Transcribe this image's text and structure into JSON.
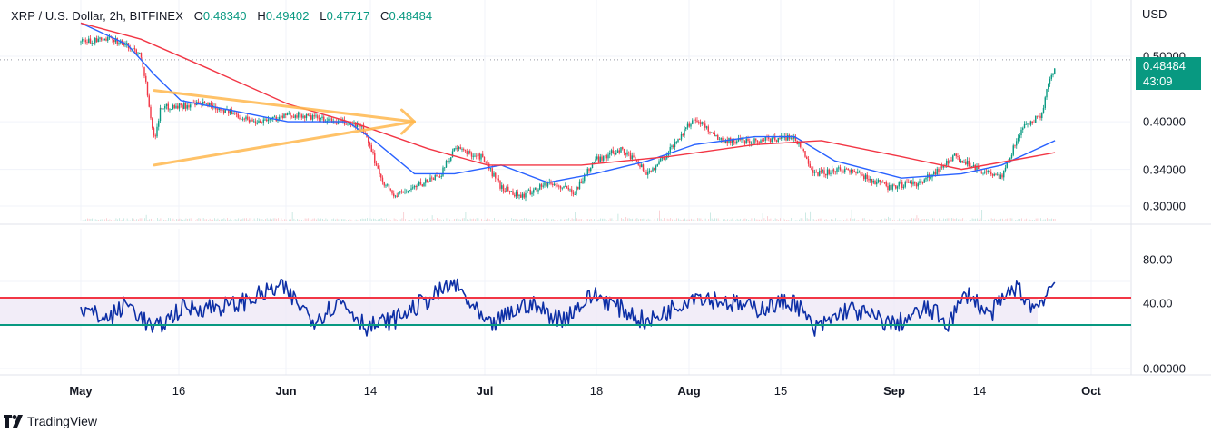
{
  "header": {
    "symbol": "XRP / U.S. Dollar, 2h, BITFINEX",
    "open_label": "O",
    "open": "0.48340",
    "high_label": "H",
    "high": "0.49402",
    "low_label": "L",
    "low": "0.47717",
    "close_label": "C",
    "close": "0.48484"
  },
  "price_axis": {
    "unit": "USD",
    "labels": [
      {
        "text": "0.50000",
        "value": 0.5
      },
      {
        "text": "0.40000",
        "value": 0.4
      },
      {
        "text": "0.34000",
        "value": 0.34
      },
      {
        "text": "0.30000",
        "value": 0.3
      }
    ]
  },
  "last_price": {
    "value": "0.48484",
    "countdown": "43:09",
    "color": "#089981"
  },
  "rsi_axis": {
    "labels": [
      {
        "text": "80.00",
        "value": 80
      },
      {
        "text": "40.00",
        "value": 40
      },
      {
        "text": "0.00000",
        "value": 0
      }
    ]
  },
  "time_axis": [
    {
      "text": "May",
      "bold": true
    },
    {
      "text": "16",
      "bold": false
    },
    {
      "text": "Jun",
      "bold": true
    },
    {
      "text": "14",
      "bold": false
    },
    {
      "text": "Jul",
      "bold": true
    },
    {
      "text": "18",
      "bold": false
    },
    {
      "text": "Aug",
      "bold": true
    },
    {
      "text": "15",
      "bold": false
    },
    {
      "text": "Sep",
      "bold": true
    },
    {
      "text": "14",
      "bold": false
    },
    {
      "text": "Oct",
      "bold": true
    }
  ],
  "brand": {
    "name": "TradingView",
    "icon": "tradingview-logo-icon"
  },
  "colors": {
    "up": "#089981",
    "down": "#f23645",
    "ma_fast": "#2962ff",
    "ma_slow": "#f23645",
    "triangle": "#ffb74d",
    "rsi_line": "#0d2fa6",
    "rsi_upper": "#f23645",
    "rsi_lower": "#089981",
    "rsi_band": "#ede7f6"
  },
  "chart_data": [
    {
      "type": "candlestick",
      "title": "XRP / U.S. Dollar, 2h, BITFINEX",
      "ylim": [
        0.285,
        0.57
      ],
      "y_scale": "log",
      "grid": true,
      "price_path": [
        {
          "x": "2024-05-01",
          "y": 0.525
        },
        {
          "x": "2024-05-06",
          "y": 0.53
        },
        {
          "x": "2024-05-10",
          "y": 0.505
        },
        {
          "x": "2024-05-11",
          "y": 0.44
        },
        {
          "x": "2024-05-12",
          "y": 0.375
        },
        {
          "x": "2024-05-13",
          "y": 0.42
        },
        {
          "x": "2024-05-20",
          "y": 0.425
        },
        {
          "x": "2024-05-27",
          "y": 0.4
        },
        {
          "x": "2024-06-02",
          "y": 0.41
        },
        {
          "x": "2024-06-08",
          "y": 0.4
        },
        {
          "x": "2024-06-12",
          "y": 0.395
        },
        {
          "x": "2024-06-15",
          "y": 0.33
        },
        {
          "x": "2024-06-17",
          "y": 0.31
        },
        {
          "x": "2024-06-20",
          "y": 0.32
        },
        {
          "x": "2024-06-24",
          "y": 0.335
        },
        {
          "x": "2024-06-26",
          "y": 0.365
        },
        {
          "x": "2024-06-30",
          "y": 0.355
        },
        {
          "x": "2024-07-03",
          "y": 0.32
        },
        {
          "x": "2024-07-06",
          "y": 0.31
        },
        {
          "x": "2024-07-10",
          "y": 0.325
        },
        {
          "x": "2024-07-14",
          "y": 0.315
        },
        {
          "x": "2024-07-17",
          "y": 0.35
        },
        {
          "x": "2024-07-21",
          "y": 0.365
        },
        {
          "x": "2024-07-25",
          "y": 0.335
        },
        {
          "x": "2024-07-28",
          "y": 0.36
        },
        {
          "x": "2024-08-01",
          "y": 0.405
        },
        {
          "x": "2024-08-05",
          "y": 0.375
        },
        {
          "x": "2024-08-10",
          "y": 0.375
        },
        {
          "x": "2024-08-16",
          "y": 0.38
        },
        {
          "x": "2024-08-19",
          "y": 0.335
        },
        {
          "x": "2024-08-24",
          "y": 0.34
        },
        {
          "x": "2024-08-30",
          "y": 0.32
        },
        {
          "x": "2024-09-04",
          "y": 0.325
        },
        {
          "x": "2024-09-09",
          "y": 0.355
        },
        {
          "x": "2024-09-14",
          "y": 0.335
        },
        {
          "x": "2024-09-16",
          "y": 0.33
        },
        {
          "x": "2024-09-19",
          "y": 0.39
        },
        {
          "x": "2024-09-22",
          "y": 0.41
        },
        {
          "x": "2024-09-23",
          "y": 0.455
        },
        {
          "x": "2024-09-24",
          "y": 0.48484
        }
      ],
      "series": [
        {
          "type": "line",
          "color": "#2962ff",
          "values": [
            {
              "x": "2024-05-01",
              "y": 0.56
            },
            {
              "x": "2024-05-08",
              "y": 0.52
            },
            {
              "x": "2024-05-12",
              "y": 0.47
            },
            {
              "x": "2024-05-16",
              "y": 0.43
            },
            {
              "x": "2024-05-24",
              "y": 0.415
            },
            {
              "x": "2024-06-01",
              "y": 0.4
            },
            {
              "x": "2024-06-10",
              "y": 0.4
            },
            {
              "x": "2024-06-14",
              "y": 0.375
            },
            {
              "x": "2024-06-20",
              "y": 0.335
            },
            {
              "x": "2024-06-26",
              "y": 0.335
            },
            {
              "x": "2024-07-03",
              "y": 0.345
            },
            {
              "x": "2024-07-10",
              "y": 0.325
            },
            {
              "x": "2024-07-17",
              "y": 0.335
            },
            {
              "x": "2024-07-25",
              "y": 0.35
            },
            {
              "x": "2024-08-01",
              "y": 0.37
            },
            {
              "x": "2024-08-10",
              "y": 0.38
            },
            {
              "x": "2024-08-16",
              "y": 0.38
            },
            {
              "x": "2024-08-22",
              "y": 0.35
            },
            {
              "x": "2024-09-01",
              "y": 0.33
            },
            {
              "x": "2024-09-10",
              "y": 0.335
            },
            {
              "x": "2024-09-16",
              "y": 0.345
            },
            {
              "x": "2024-09-24",
              "y": 0.375
            }
          ]
        },
        {
          "type": "line",
          "color": "#f23645",
          "values": [
            {
              "x": "2024-05-01",
              "y": 0.56
            },
            {
              "x": "2024-05-10",
              "y": 0.53
            },
            {
              "x": "2024-05-20",
              "y": 0.48
            },
            {
              "x": "2024-06-01",
              "y": 0.425
            },
            {
              "x": "2024-06-12",
              "y": 0.395
            },
            {
              "x": "2024-06-22",
              "y": 0.365
            },
            {
              "x": "2024-07-01",
              "y": 0.345
            },
            {
              "x": "2024-07-15",
              "y": 0.345
            },
            {
              "x": "2024-07-28",
              "y": 0.355
            },
            {
              "x": "2024-08-10",
              "y": 0.37
            },
            {
              "x": "2024-08-20",
              "y": 0.375
            },
            {
              "x": "2024-09-01",
              "y": 0.355
            },
            {
              "x": "2024-09-10",
              "y": 0.34
            },
            {
              "x": "2024-09-24",
              "y": 0.36
            }
          ]
        }
      ],
      "annotations": [
        {
          "type": "triangle-pattern",
          "color": "#ffb74d",
          "points": [
            {
              "x": "2024-05-12",
              "y": 0.445
            },
            {
              "x": "2024-05-12",
              "y": 0.345
            },
            {
              "x": "2024-06-20",
              "y": 0.4
            }
          ]
        },
        {
          "type": "horizontal-dotted",
          "y": 0.49402
        }
      ]
    },
    {
      "type": "line",
      "title": "",
      "ylim": [
        0,
        100
      ],
      "grid": true,
      "bands": [
        {
          "from": 40,
          "to": 65,
          "color": "#ede7f6"
        }
      ],
      "levels": [
        {
          "value": 65,
          "color": "#f23645"
        },
        {
          "value": 40,
          "color": "#089981"
        }
      ],
      "series": [
        {
          "color": "#0d2fa6",
          "values": [
            {
              "x": "2024-05-01",
              "y": 55
            },
            {
              "x": "2024-05-05",
              "y": 45
            },
            {
              "x": "2024-05-08",
              "y": 60
            },
            {
              "x": "2024-05-12",
              "y": 35
            },
            {
              "x": "2024-05-16",
              "y": 55
            },
            {
              "x": "2024-05-24",
              "y": 58
            },
            {
              "x": "2024-05-31",
              "y": 75
            },
            {
              "x": "2024-06-05",
              "y": 45
            },
            {
              "x": "2024-06-09",
              "y": 62
            },
            {
              "x": "2024-06-13",
              "y": 38
            },
            {
              "x": "2024-06-17",
              "y": 45
            },
            {
              "x": "2024-06-26",
              "y": 78
            },
            {
              "x": "2024-07-01",
              "y": 38
            },
            {
              "x": "2024-07-07",
              "y": 60
            },
            {
              "x": "2024-07-12",
              "y": 45
            },
            {
              "x": "2024-07-17",
              "y": 68
            },
            {
              "x": "2024-07-25",
              "y": 42
            },
            {
              "x": "2024-08-01",
              "y": 68
            },
            {
              "x": "2024-08-10",
              "y": 55
            },
            {
              "x": "2024-08-16",
              "y": 62
            },
            {
              "x": "2024-08-19",
              "y": 35
            },
            {
              "x": "2024-08-24",
              "y": 55
            },
            {
              "x": "2024-08-31",
              "y": 40
            },
            {
              "x": "2024-09-05",
              "y": 55
            },
            {
              "x": "2024-09-08",
              "y": 42
            },
            {
              "x": "2024-09-11",
              "y": 70
            },
            {
              "x": "2024-09-14",
              "y": 48
            },
            {
              "x": "2024-09-18",
              "y": 75
            },
            {
              "x": "2024-09-21",
              "y": 55
            },
            {
              "x": "2024-09-24",
              "y": 80
            }
          ]
        }
      ]
    }
  ]
}
